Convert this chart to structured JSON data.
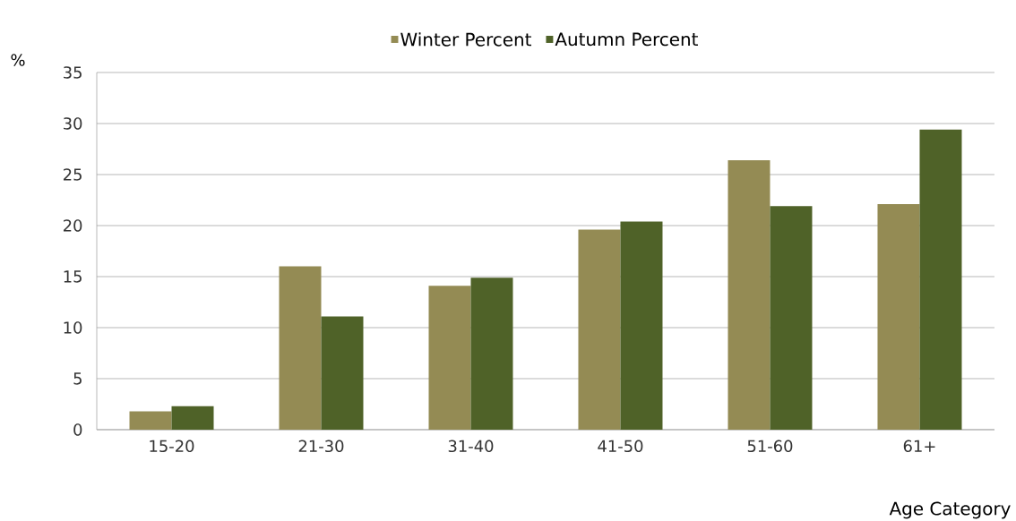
{
  "chart_data": {
    "type": "bar",
    "xlabel": "Age Category",
    "ylabel": "%",
    "categories": [
      "15-20",
      "21-30",
      "31-40",
      "41-50",
      "51-60",
      "61+"
    ],
    "series": [
      {
        "name": "Winter Percent",
        "color": "#948b54",
        "values": [
          1.8,
          16.0,
          14.1,
          19.6,
          26.4,
          22.1
        ]
      },
      {
        "name": "Autumn Percent",
        "color": "#4f6228",
        "values": [
          2.3,
          11.1,
          14.9,
          20.4,
          21.9,
          29.4
        ]
      }
    ],
    "ylim": [
      0,
      35
    ],
    "yticks": [
      0,
      5,
      10,
      15,
      20,
      25,
      30,
      35
    ],
    "grid": "y",
    "legend": "top"
  }
}
